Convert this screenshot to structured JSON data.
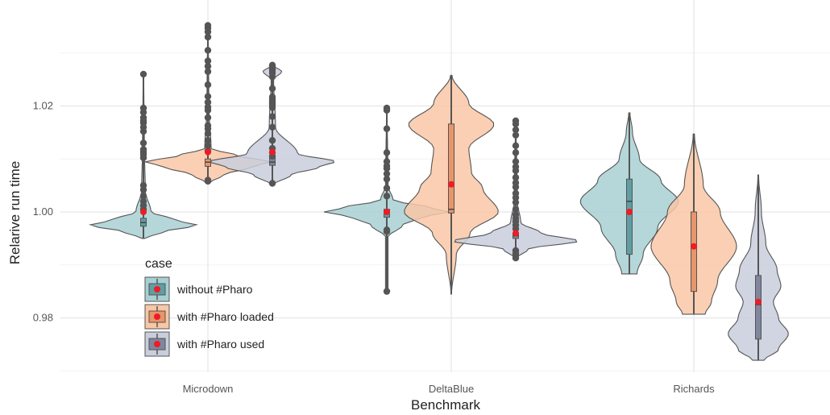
{
  "chart_data": {
    "type": "violin",
    "xlabel": "Benchmark",
    "ylabel": "Relarive run time",
    "categories": [
      "Microdown",
      "DeltaBlue",
      "Richards"
    ],
    "ylim": [
      0.97,
      1.037
    ],
    "y_ticks": [
      0.98,
      1.0,
      1.02
    ],
    "y_tick_labels": [
      "0.98",
      "1.00",
      "1.02"
    ],
    "grid": true,
    "legend": {
      "title": "case",
      "position": "bottom-left"
    },
    "series": [
      {
        "name": "without #Pharo",
        "color": "#a8d0d2",
        "box_color": "#5f9ea3",
        "data": [
          {
            "category": "Microdown",
            "min": 0.995,
            "max": 1.026,
            "q1": 0.9973,
            "median": 0.998,
            "q3": 0.9988,
            "mean": 1.0,
            "profile": [
              [
                0.995,
                0.02
              ],
              [
                0.9962,
                0.3
              ],
              [
                0.9975,
                0.85
              ],
              [
                0.9985,
                0.5
              ],
              [
                1.0,
                0.12
              ],
              [
                1.004,
                0.03
              ],
              [
                1.012,
                0.015
              ],
              [
                1.026,
                0.005
              ]
            ],
            "outliers": [
              1.0005,
              1.0012,
              1.002,
              1.003,
              1.0042,
              1.005,
              1.0102,
              1.0108,
              1.0113,
              1.0118,
              1.013,
              1.0152,
              1.016,
              1.0168,
              1.0172,
              1.0178,
              1.0188,
              1.0196,
              1.026
            ]
          },
          {
            "category": "DeltaBlue",
            "min": 0.985,
            "max": 1.0196,
            "q1": 0.999,
            "median": 0.9998,
            "q3": 1.0005,
            "mean": 1.0,
            "profile": [
              [
                0.9953,
                0.02
              ],
              [
                0.9975,
                0.25
              ],
              [
                0.999,
                0.55
              ],
              [
                1.0,
                1.0
              ],
              [
                1.0008,
                0.7
              ],
              [
                1.0022,
                0.1
              ],
              [
                1.005,
                0.02
              ],
              [
                1.0196,
                0.005
              ]
            ],
            "outliers": [
              0.985,
              0.9963,
              0.9966,
              1.003,
              1.0045,
              1.0062,
              1.0072,
              1.0082,
              1.0087,
              1.0095,
              1.0112,
              1.0157,
              1.0192,
              1.0196
            ]
          },
          {
            "category": "Richards",
            "min": 0.9883,
            "max": 1.0187,
            "q1": 0.992,
            "median": 1.002,
            "q3": 1.0062,
            "mean": 1.0,
            "profile": [
              [
                0.9883,
                0.12
              ],
              [
                0.992,
                0.22
              ],
              [
                0.997,
                0.45
              ],
              [
                1.002,
                0.78
              ],
              [
                1.006,
                0.5
              ],
              [
                1.01,
                0.16
              ],
              [
                1.015,
                0.05
              ],
              [
                1.0187,
                0.01
              ]
            ],
            "outliers": []
          }
        ]
      },
      {
        "name": "with #Pharo loaded",
        "color": "#f9c7a6",
        "box_color": "#e8956a",
        "data": [
          {
            "category": "Microdown",
            "min": 1.0055,
            "max": 1.0352,
            "q1": 1.0086,
            "median": 1.0094,
            "q3": 1.01,
            "mean": 1.0113,
            "profile": [
              [
                1.0055,
                0.03
              ],
              [
                1.007,
                0.25
              ],
              [
                1.0085,
                0.7
              ],
              [
                1.0095,
                1.0
              ],
              [
                1.0105,
                0.5
              ],
              [
                1.012,
                0.05
              ],
              [
                1.02,
                0.015
              ],
              [
                1.0352,
                0.005
              ]
            ],
            "outliers": [
              1.0058,
              1.006,
              1.0115,
              1.0125,
              1.0135,
              1.0148,
              1.0157,
              1.0163,
              1.0178,
              1.0192,
              1.0198,
              1.0207,
              1.0218,
              1.024,
              1.0265,
              1.0275,
              1.0285,
              1.0305,
              1.033,
              1.034,
              1.0347,
              1.0352
            ]
          },
          {
            "category": "DeltaBlue",
            "min": 0.9845,
            "max": 1.0258,
            "q1": 0.9998,
            "median": 1.0005,
            "q3": 1.0166,
            "mean": 1.0052,
            "profile": [
              [
                0.9845,
                0.005
              ],
              [
                0.992,
                0.08
              ],
              [
                0.996,
                0.3
              ],
              [
                1.0,
                0.75
              ],
              [
                1.0045,
                0.5
              ],
              [
                1.0075,
                0.32
              ],
              [
                1.012,
                0.28
              ],
              [
                1.0165,
                0.68
              ],
              [
                1.0205,
                0.28
              ],
              [
                1.0258,
                0.01
              ]
            ],
            "outliers": []
          },
          {
            "category": "Richards",
            "min": 0.9807,
            "max": 1.0147,
            "q1": 0.985,
            "median": 0.9935,
            "q3": 1.0,
            "mean": 0.9935,
            "profile": [
              [
                0.9807,
                0.18
              ],
              [
                0.983,
                0.28
              ],
              [
                0.987,
                0.38
              ],
              [
                0.9935,
                0.68
              ],
              [
                1.0,
                0.42
              ],
              [
                1.005,
                0.15
              ],
              [
                1.0147,
                0.01
              ]
            ],
            "outliers": []
          }
        ]
      },
      {
        "name": "with #Pharo used",
        "color": "#c9cedc",
        "box_color": "#7f869e",
        "data": [
          {
            "category": "Microdown",
            "min": 1.0052,
            "max": 1.0277,
            "q1": 1.0088,
            "median": 1.0094,
            "q3": 1.0102,
            "mean": 1.0113,
            "profile": [
              [
                1.0052,
                0.03
              ],
              [
                1.007,
                0.3
              ],
              [
                1.0085,
                0.75
              ],
              [
                1.0095,
                1.0
              ],
              [
                1.011,
                0.4
              ],
              [
                1.016,
                0.05
              ],
              [
                1.025,
                0.02
              ],
              [
                1.0265,
                0.15
              ],
              [
                1.0277,
                0.005
              ]
            ],
            "outliers": [
              1.0054,
              1.0105,
              1.0112,
              1.012,
              1.0135,
              1.016,
              1.018,
              1.0197,
              1.0201,
              1.0204,
              1.0208,
              1.0212,
              1.0217,
              1.0233,
              1.0255,
              1.0262,
              1.0267,
              1.027,
              1.0275,
              1.0277
            ]
          },
          {
            "category": "DeltaBlue",
            "min": 0.9913,
            "max": 1.0172,
            "q1": 0.995,
            "median": 0.9955,
            "q3": 0.996,
            "mean": 0.996,
            "profile": [
              [
                0.9913,
                0.02
              ],
              [
                0.993,
                0.2
              ],
              [
                0.9945,
                1.0
              ],
              [
                0.996,
                0.4
              ],
              [
                0.998,
                0.08
              ],
              [
                1.002,
                0.025
              ],
              [
                1.0172,
                0.005
              ]
            ],
            "outliers": [
              0.9913,
              0.9918,
              0.9922,
              0.9927,
              0.9968,
              0.9975,
              0.9982,
              0.9988,
              0.9995,
              1.0005,
              1.0018,
              1.0027,
              1.0035,
              1.0047,
              1.0055,
              1.0065,
              1.0078,
              1.0085,
              1.0095,
              1.0112,
              1.0125,
              1.0145,
              1.0155,
              1.0166,
              1.0172
            ]
          },
          {
            "category": "Richards",
            "min": 0.972,
            "max": 1.007,
            "q1": 0.976,
            "median": 0.9825,
            "q3": 0.988,
            "mean": 0.983,
            "profile": [
              [
                0.972,
                0.09
              ],
              [
                0.974,
                0.32
              ],
              [
                0.977,
                0.48
              ],
              [
                0.98,
                0.32
              ],
              [
                0.983,
                0.24
              ],
              [
                0.986,
                0.36
              ],
              [
                0.989,
                0.3
              ],
              [
                0.994,
                0.12
              ],
              [
                1.0,
                0.05
              ],
              [
                1.007,
                0.005
              ]
            ],
            "outliers": []
          }
        ]
      }
    ]
  }
}
